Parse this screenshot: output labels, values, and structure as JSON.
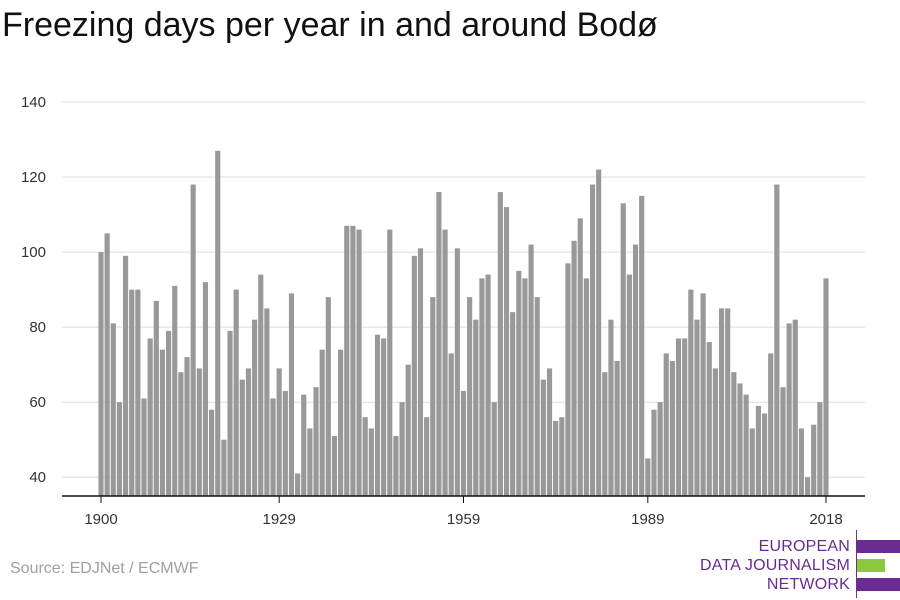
{
  "chart_data": {
    "type": "bar",
    "title": "Freezing days per year in and around Bodø",
    "xlabel": "",
    "ylabel": "",
    "ylim": [
      35,
      140
    ],
    "yticks": [
      40,
      60,
      80,
      100,
      120,
      140
    ],
    "xticks": [
      1900,
      1929,
      1959,
      1989,
      2018
    ],
    "grid": true,
    "bar_color": "#999999",
    "x": [
      1900,
      1901,
      1902,
      1903,
      1904,
      1905,
      1906,
      1907,
      1908,
      1909,
      1910,
      1911,
      1912,
      1913,
      1914,
      1915,
      1916,
      1917,
      1918,
      1919,
      1920,
      1921,
      1922,
      1923,
      1924,
      1925,
      1926,
      1927,
      1928,
      1929,
      1930,
      1931,
      1932,
      1933,
      1934,
      1935,
      1936,
      1937,
      1938,
      1939,
      1940,
      1941,
      1942,
      1943,
      1944,
      1945,
      1946,
      1947,
      1948,
      1949,
      1950,
      1951,
      1952,
      1953,
      1954,
      1955,
      1956,
      1957,
      1958,
      1959,
      1960,
      1961,
      1962,
      1963,
      1964,
      1965,
      1966,
      1967,
      1968,
      1969,
      1970,
      1971,
      1972,
      1973,
      1974,
      1975,
      1976,
      1977,
      1978,
      1979,
      1980,
      1981,
      1982,
      1983,
      1984,
      1985,
      1986,
      1987,
      1988,
      1989,
      1990,
      1991,
      1992,
      1993,
      1994,
      1995,
      1996,
      1997,
      1998,
      1999,
      2000,
      2001,
      2002,
      2003,
      2004,
      2005,
      2006,
      2007,
      2008,
      2009,
      2010,
      2011,
      2012,
      2013,
      2014,
      2015,
      2016,
      2017,
      2018
    ],
    "values": [
      100,
      105,
      81,
      60,
      99,
      90,
      90,
      61,
      77,
      87,
      74,
      79,
      91,
      68,
      72,
      118,
      69,
      92,
      58,
      127,
      50,
      79,
      90,
      66,
      69,
      82,
      94,
      85,
      61,
      69,
      63,
      89,
      41,
      62,
      53,
      64,
      74,
      88,
      51,
      74,
      107,
      107,
      106,
      56,
      53,
      78,
      77,
      106,
      51,
      60,
      70,
      99,
      101,
      56,
      88,
      116,
      106,
      73,
      101,
      63,
      88,
      82,
      93,
      94,
      60,
      116,
      112,
      84,
      95,
      93,
      102,
      88,
      66,
      69,
      55,
      56,
      97,
      103,
      109,
      93,
      118,
      122,
      68,
      82,
      71,
      113,
      94,
      102,
      115,
      45,
      58,
      60,
      73,
      71,
      77,
      77,
      90,
      82,
      89,
      76,
      69,
      85,
      85,
      68,
      65,
      62,
      53,
      59,
      57,
      73,
      118,
      64,
      81,
      82,
      53,
      40,
      54,
      60,
      93
    ]
  },
  "source": "Source: EDJNet / ECMWF",
  "logo": {
    "line1": "EUROPEAN",
    "line2": "DATA JOURNALISM",
    "line3": "NETWORK",
    "purple": "#6a2c91",
    "green": "#8dc63f"
  }
}
